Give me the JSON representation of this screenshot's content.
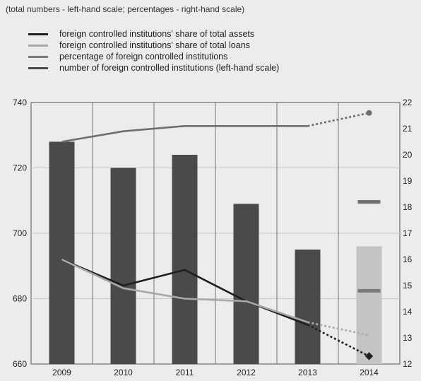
{
  "subtitle": "(total numbers - left-hand scale; percentages - right-hand scale)",
  "legend": [
    {
      "label": "foreign controlled institutions' share of total assets",
      "color": "#1e1e1e"
    },
    {
      "label": "foreign controlled institutions' share of total loans",
      "color": "#a8a8a8"
    },
    {
      "label": "percentage of foreign controlled institutions",
      "color": "#7a7a7a"
    },
    {
      "label": "number of foreign controlled institutions (left-hand scale)",
      "color": "#4a4a4a"
    }
  ],
  "chart_data": {
    "type": "bar",
    "categories": [
      "2009",
      "2010",
      "2011",
      "2012",
      "2013",
      "2014"
    ],
    "left_axis": {
      "ylim": [
        660,
        740
      ],
      "ticks": [
        "660",
        "680",
        "700",
        "720",
        "740"
      ]
    },
    "right_axis": {
      "ylim": [
        12,
        22
      ],
      "ticks": [
        "12",
        "13",
        "14",
        "15",
        "16",
        "17",
        "18",
        "19",
        "20",
        "21",
        "22"
      ]
    },
    "bars": {
      "name": "number of foreign controlled institutions (left-hand scale)",
      "values": [
        728,
        720,
        724,
        709,
        695,
        696
      ],
      "color": "#4a4a4a",
      "projected_color": "#c4c4c4"
    },
    "series": [
      {
        "name": "foreign controlled institutions' share of total assets",
        "axis": "right",
        "color": "#1e1e1e",
        "values": [
          16.0,
          15.0,
          15.6,
          14.4,
          13.5,
          12.3
        ],
        "dotted_last": true
      },
      {
        "name": "foreign controlled institutions' share of total loans",
        "axis": "right",
        "color": "#a8a8a8",
        "values": [
          16.0,
          14.9,
          14.5,
          14.4,
          13.6,
          13.1
        ],
        "dotted_last": true
      },
      {
        "name": "percentage of foreign controlled institutions",
        "axis": "right",
        "color": "#6e6e6e",
        "values": [
          20.5,
          20.9,
          21.1,
          21.1,
          21.1,
          21.6
        ],
        "dotted_last": true
      }
    ],
    "markers_2014": [
      {
        "series": "percentage of foreign controlled institutions",
        "value": 18.2,
        "color": "#6e6e6e"
      },
      {
        "series": "foreign controlled institutions' share of total loans",
        "value": 14.8,
        "color": "#7a7a7a"
      }
    ]
  }
}
